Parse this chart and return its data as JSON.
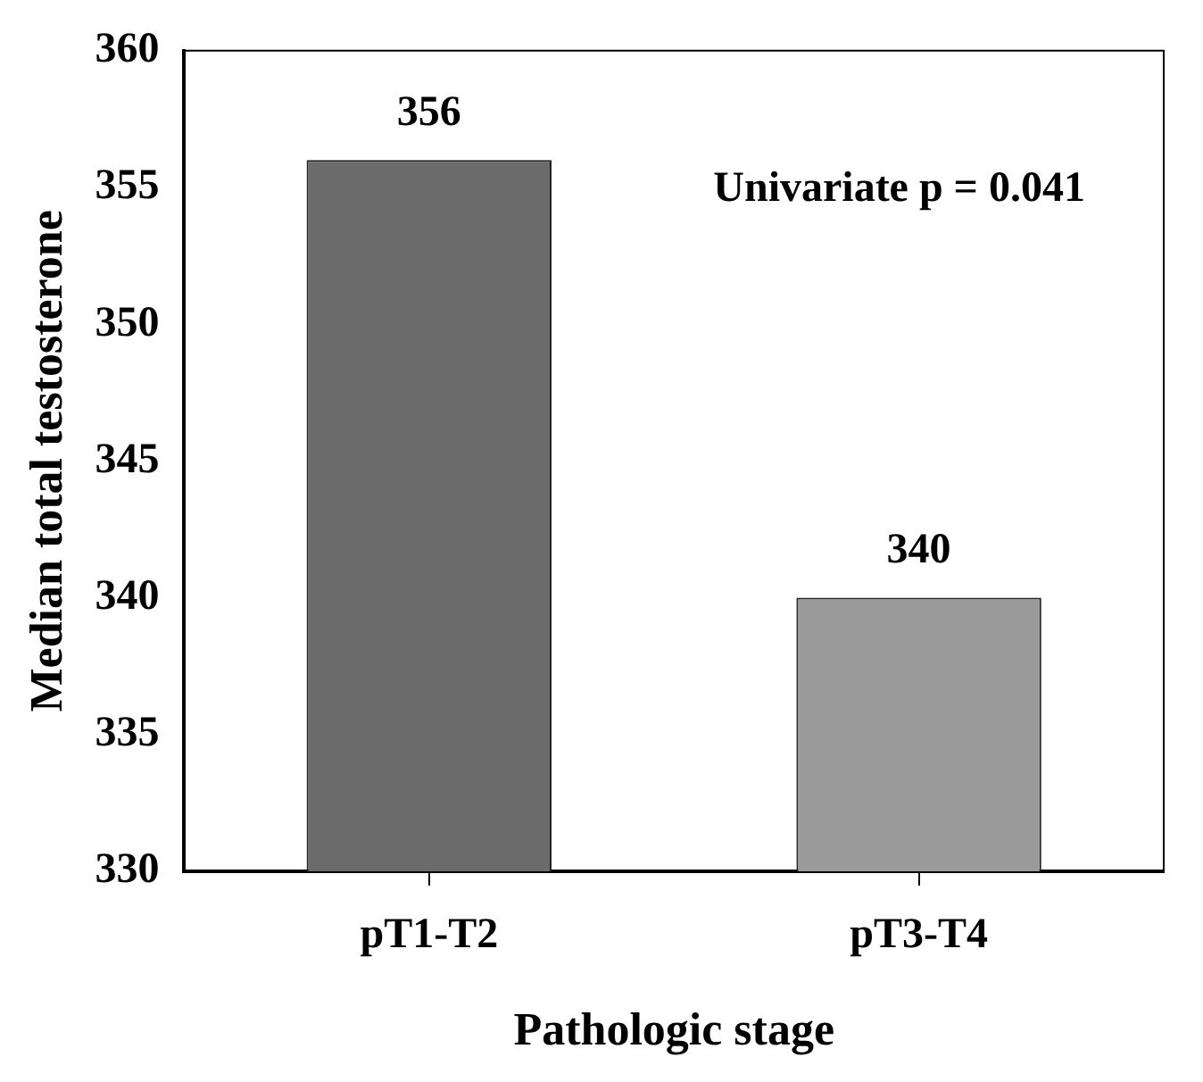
{
  "chart_data": {
    "type": "bar",
    "xlabel": "Pathologic stage",
    "ylabel": "Median total testosterone",
    "categories": [
      "pT1-T2",
      "pT3-T4"
    ],
    "values": [
      356,
      340
    ],
    "colors": [
      "#6b6b6b",
      "#9a9a9a"
    ],
    "ylim": [
      330,
      360
    ],
    "yticks": [
      330,
      335,
      340,
      345,
      350,
      355,
      360
    ],
    "grid": false,
    "legend": false,
    "data_labels": true,
    "annotations": [
      "Univariate p = 0.041"
    ]
  }
}
